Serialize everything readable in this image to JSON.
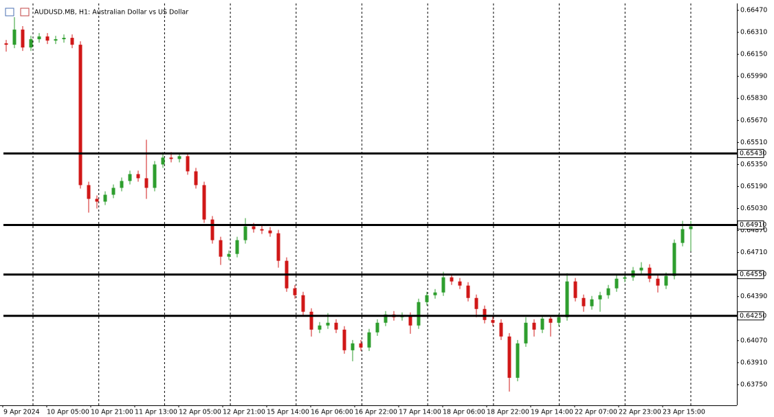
{
  "chart_data": {
    "type": "candlestick",
    "title": "AUDUSD.MB, H1:  Australian Dollar vs US Dollar",
    "up_color": "#2e9e2e",
    "down_color": "#d01818",
    "open": [
      0.6623,
      0.6622,
      0.6633,
      0.662,
      0.6626,
      0.6628,
      0.6625,
      0.6626,
      0.6627,
      0.6622,
      0.652,
      0.651,
      0.6508,
      0.6513,
      0.6518,
      0.6523,
      0.6528,
      0.6525,
      0.6518,
      0.6535,
      0.654,
      0.6539,
      0.6541,
      0.653,
      0.652,
      0.6495,
      0.648,
      0.6468,
      0.647,
      0.648,
      0.649,
      0.6488,
      0.6487,
      0.6485,
      0.6465,
      0.6445,
      0.644,
      0.6428,
      0.6415,
      0.6418,
      0.642,
      0.6415,
      0.64,
      0.6405,
      0.6402,
      0.6413,
      0.642,
      0.6426,
      0.6424,
      0.6425,
      0.6418,
      0.6435,
      0.644,
      0.6442,
      0.6453,
      0.645,
      0.6447,
      0.6438,
      0.643,
      0.6422,
      0.642,
      0.641,
      0.638,
      0.6405,
      0.642,
      0.6415,
      0.6423,
      0.642,
      0.6424,
      0.645,
      0.6438,
      0.6432,
      0.6437,
      0.644,
      0.6445,
      0.6452,
      0.6453,
      0.6458,
      0.646,
      0.6452,
      0.6447,
      0.6454,
      0.6478,
      0.6488
    ],
    "high": [
      0.66255,
      0.6642,
      0.66355,
      0.66285,
      0.66305,
      0.66305,
      0.66285,
      0.66295,
      0.66295,
      0.66245,
      0.65225,
      0.65125,
      0.65155,
      0.65205,
      0.65255,
      0.65305,
      0.65305,
      0.6553,
      0.65375,
      0.6544,
      0.6544,
      0.65435,
      0.65435,
      0.65325,
      0.65225,
      0.64975,
      0.64825,
      0.64725,
      0.64825,
      0.6496,
      0.64925,
      0.64905,
      0.64895,
      0.64875,
      0.64675,
      0.64475,
      0.64425,
      0.64305,
      0.64205,
      0.6427,
      0.64225,
      0.64175,
      0.64075,
      0.64075,
      0.64155,
      0.64225,
      0.64285,
      0.64285,
      0.64275,
      0.64275,
      0.64375,
      0.64425,
      0.64445,
      0.6457,
      0.64555,
      0.64525,
      0.64495,
      0.64405,
      0.64325,
      0.64245,
      0.64225,
      0.64125,
      0.64075,
      0.6424,
      0.64225,
      0.64255,
      0.64255,
      0.64265,
      0.6456,
      0.64525,
      0.64405,
      0.64395,
      0.64425,
      0.64475,
      0.64545,
      0.64555,
      0.64605,
      0.6464,
      0.64625,
      0.64545,
      0.64565,
      0.64805,
      0.6494,
      0.6494
    ],
    "low": [
      0.6617,
      0.66195,
      0.66175,
      0.66175,
      0.66235,
      0.66225,
      0.66225,
      0.66235,
      0.66195,
      0.65175,
      0.65,
      0.6503,
      0.65055,
      0.65105,
      0.65155,
      0.65205,
      0.65225,
      0.651,
      0.65155,
      0.65325,
      0.65365,
      0.65365,
      0.65275,
      0.65175,
      0.64925,
      0.64775,
      0.6462,
      0.64655,
      0.64675,
      0.64775,
      0.64855,
      0.64845,
      0.64825,
      0.646,
      0.64425,
      0.64375,
      0.64255,
      0.641,
      0.64125,
      0.64155,
      0.64125,
      0.63975,
      0.6392,
      0.63995,
      0.63995,
      0.64105,
      0.64175,
      0.64215,
      0.64215,
      0.6412,
      0.64155,
      0.64325,
      0.64375,
      0.64395,
      0.64475,
      0.64445,
      0.64355,
      0.6424,
      0.64195,
      0.64175,
      0.64075,
      0.637,
      0.63775,
      0.64025,
      0.641,
      0.64125,
      0.641,
      0.64175,
      0.64215,
      0.64355,
      0.6428,
      0.64295,
      0.6428,
      0.64375,
      0.64425,
      0.64495,
      0.64505,
      0.64555,
      0.64495,
      0.6442,
      0.64445,
      0.64515,
      0.64755,
      0.6472
    ],
    "close": [
      0.6622,
      0.6633,
      0.662,
      0.6626,
      0.6628,
      0.6625,
      0.6626,
      0.6627,
      0.6622,
      0.652,
      0.651,
      0.6508,
      0.6513,
      0.6518,
      0.6523,
      0.6528,
      0.6525,
      0.6518,
      0.6535,
      0.654,
      0.6539,
      0.6541,
      0.653,
      0.652,
      0.6495,
      0.648,
      0.6468,
      0.647,
      0.648,
      0.649,
      0.6488,
      0.6487,
      0.6485,
      0.6465,
      0.6445,
      0.644,
      0.6428,
      0.6415,
      0.6418,
      0.642,
      0.6415,
      0.64,
      0.6405,
      0.6402,
      0.6413,
      0.642,
      0.6426,
      0.6424,
      0.6425,
      0.6418,
      0.6435,
      0.644,
      0.6442,
      0.6453,
      0.645,
      0.6447,
      0.6438,
      0.643,
      0.6422,
      0.642,
      0.641,
      0.638,
      0.6405,
      0.642,
      0.6415,
      0.6423,
      0.642,
      0.6424,
      0.645,
      0.6438,
      0.6432,
      0.6437,
      0.644,
      0.6445,
      0.6452,
      0.6453,
      0.6458,
      0.646,
      0.6452,
      0.6447,
      0.6454,
      0.6478,
      0.6488,
      0.649
    ],
    "levels": [
      {
        "value": 0.6543,
        "label": "0.65430"
      },
      {
        "value": 0.6491,
        "label": "0.64910"
      },
      {
        "value": 0.6455,
        "label": "0.64550"
      },
      {
        "value": 0.6425,
        "label": "0.64250"
      }
    ],
    "ylim": [
      0.636,
      0.6652
    ],
    "yticks": [
      {
        "value": 0.6647,
        "label": "0.66470"
      },
      {
        "value": 0.6631,
        "label": "0.66310"
      },
      {
        "value": 0.6615,
        "label": "0.66150"
      },
      {
        "value": 0.6599,
        "label": "0.65990"
      },
      {
        "value": 0.6583,
        "label": "0.65830"
      },
      {
        "value": 0.6567,
        "label": "0.65670"
      },
      {
        "value": 0.6551,
        "label": "0.65510"
      },
      {
        "value": 0.6535,
        "label": "0.65350"
      },
      {
        "value": 0.6519,
        "label": "0.65190"
      },
      {
        "value": 0.6503,
        "label": "0.65030"
      },
      {
        "value": 0.6487,
        "label": "0.64870"
      },
      {
        "value": 0.6471,
        "label": "0.64710"
      },
      {
        "value": 0.6439,
        "label": "0.64390"
      },
      {
        "value": 0.6407,
        "label": "0.64070"
      },
      {
        "value": 0.6391,
        "label": "0.63910"
      },
      {
        "value": 0.6375,
        "label": "0.63750"
      }
    ],
    "xticks": [
      "9 Apr 2024",
      "10 Apr 05:00",
      "10 Apr 21:00",
      "11 Apr 13:00",
      "12 Apr 05:00",
      "12 Apr 21:00",
      "15 Apr 14:00",
      "16 Apr 06:00",
      "16 Apr 22:00",
      "17 Apr 14:00",
      "18 Apr 06:00",
      "18 Apr 22:00",
      "19 Apr 14:00",
      "22 Apr 07:00",
      "22 Apr 23:00",
      "23 Apr 15:00"
    ],
    "grid": true
  }
}
